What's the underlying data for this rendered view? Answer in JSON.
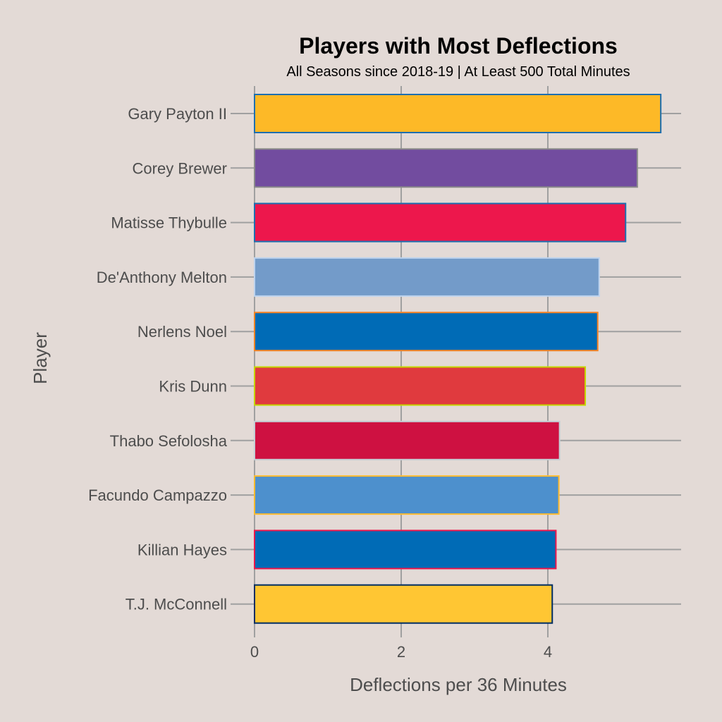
{
  "chart_data": {
    "type": "bar",
    "orientation": "horizontal",
    "title": "Players with Most Deflections",
    "subtitle": "All Seasons since 2018-19 | At Least 500 Total Minutes",
    "xlabel": "Deflections per 36 Minutes",
    "ylabel": "Player",
    "xlim": [
      0,
      5.82
    ],
    "xticks": [
      "0",
      "2",
      "4"
    ],
    "xtick_values": [
      0,
      2,
      4
    ],
    "grid": true,
    "categories": [
      "Gary Payton II",
      "Corey Brewer",
      "Matisse Thybulle",
      "De'Anthony Melton",
      "Nerlens Noel",
      "Kris Dunn",
      "Thabo Sefolosha",
      "Facundo Campazzo",
      "Killian Hayes",
      "T.J. McConnell"
    ],
    "values": [
      5.54,
      5.22,
      5.06,
      4.7,
      4.68,
      4.51,
      4.16,
      4.15,
      4.11,
      4.06
    ],
    "fills": [
      "#FDB927",
      "#724C9F",
      "#ED174C",
      "#739BC9",
      "#006BB6",
      "#E03A3E",
      "#CE1141",
      "#4D90CD",
      "#006BB6",
      "#FFC633"
    ],
    "borders": [
      "#1D6FB0",
      "#8A8A8A",
      "#1D6FB0",
      "#BDD3EE",
      "#F58426",
      "#C4D600",
      "#C4CED4",
      "#FDBB30",
      "#ED174C",
      "#002D62"
    ]
  }
}
